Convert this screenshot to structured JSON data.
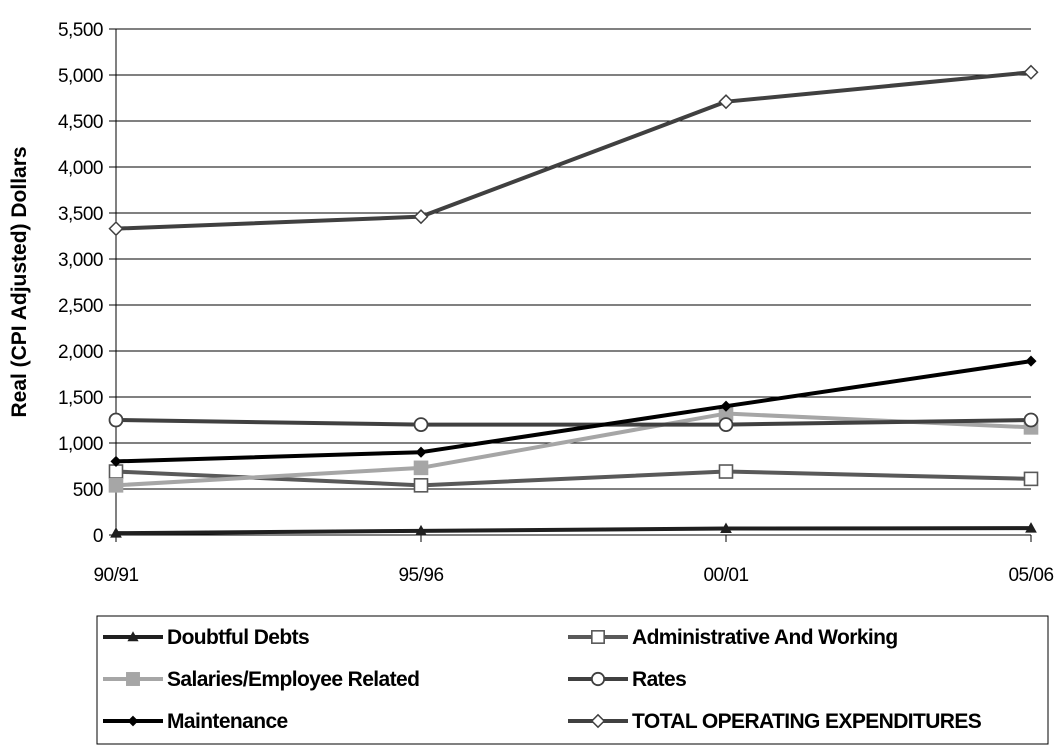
{
  "chart_data": {
    "type": "line",
    "title": "",
    "xlabel": "",
    "ylabel": "Real (CPI Adjusted) Dollars",
    "categories": [
      "90/91",
      "95/96",
      "00/01",
      "05/06"
    ],
    "ylim": [
      0,
      5500
    ],
    "yticks": [
      0,
      500,
      1000,
      1500,
      2000,
      2500,
      3000,
      3500,
      4000,
      4500,
      5000,
      5500
    ],
    "ytick_labels": [
      "0",
      "500",
      "1,000",
      "1,500",
      "2,000",
      "2,500",
      "3,000",
      "3,500",
      "4,000",
      "4,500",
      "5,000",
      "5,500"
    ],
    "grid": "horizontal",
    "legend_position": "bottom",
    "series": [
      {
        "name": "Doubtful Debts",
        "values": [
          20,
          45,
          70,
          75
        ],
        "color": "#1f1f1f",
        "marker": "triangle",
        "marker_fill": "#1f1f1f"
      },
      {
        "name": "Administrative And Working",
        "values": [
          690,
          540,
          690,
          610
        ],
        "color": "#595959",
        "marker": "square",
        "marker_fill": "#ffffff"
      },
      {
        "name": "Salaries/Employee Related",
        "values": [
          540,
          730,
          1320,
          1170
        ],
        "color": "#a6a6a6",
        "marker": "square",
        "marker_fill": "#a6a6a6"
      },
      {
        "name": "Rates",
        "values": [
          1250,
          1200,
          1200,
          1250
        ],
        "color": "#404040",
        "marker": "circle",
        "marker_fill": "#ffffff"
      },
      {
        "name": "Maintenance",
        "values": [
          800,
          900,
          1400,
          1890
        ],
        "color": "#000000",
        "marker": "diamond",
        "marker_fill": "#000000"
      },
      {
        "name": "TOTAL OPERATING EXPENDITURES",
        "values": [
          3330,
          3460,
          4710,
          5030
        ],
        "color": "#404040",
        "marker": "diamond",
        "marker_fill": "#ffffff"
      }
    ]
  }
}
